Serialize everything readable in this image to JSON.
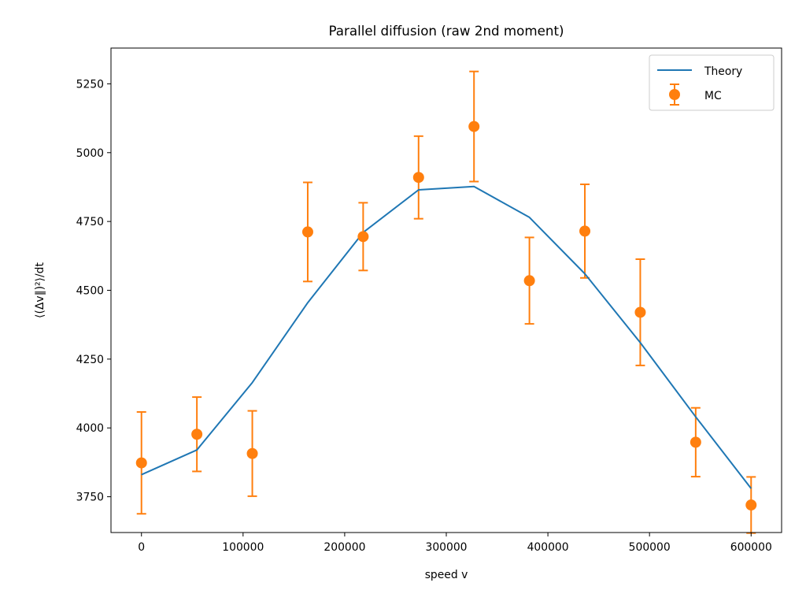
{
  "chart_data": {
    "type": "line",
    "title": "Parallel diffusion (raw 2nd moment)",
    "xlabel": "speed v",
    "ylabel": "⟨(Δv∥)²⟩/dt",
    "xlim": [
      -30000,
      630000
    ],
    "ylim": [
      3620,
      5380
    ],
    "xticks": [
      0,
      100000,
      200000,
      300000,
      400000,
      500000,
      600000
    ],
    "yticks": [
      3750,
      4000,
      4250,
      4500,
      4750,
      5000,
      5250
    ],
    "grid": false,
    "legend_position": "top-right",
    "series": [
      {
        "name": "Theory",
        "kind": "line",
        "color": "#1f77b4",
        "x": [
          0,
          54545,
          109091,
          163636,
          218182,
          272727,
          327273,
          381818,
          436364,
          490909,
          545455,
          600000
        ],
        "y": [
          3830,
          3920,
          4165,
          4455,
          4710,
          4865,
          4877,
          4765,
          4560,
          4310,
          4040,
          3780
        ]
      },
      {
        "name": "MC",
        "kind": "errorbar",
        "color": "#ff7f0e",
        "x": [
          0,
          54545,
          109091,
          163636,
          218182,
          272727,
          327273,
          381818,
          436364,
          490909,
          545455,
          600000
        ],
        "y": [
          3873,
          3977,
          3907,
          4712,
          4695,
          4910,
          5095,
          4535,
          4715,
          4420,
          3948,
          3720
        ],
        "yerr": [
          185,
          135,
          155,
          180,
          123,
          150,
          200,
          157,
          170,
          193,
          125,
          102
        ]
      }
    ]
  }
}
